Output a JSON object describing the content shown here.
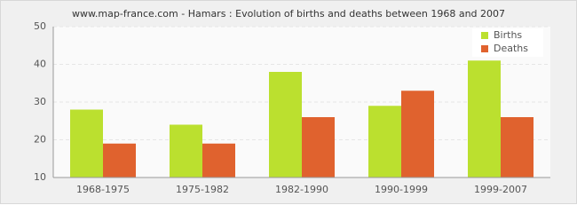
{
  "chart_data": {
    "type": "bar",
    "title": "www.map-france.com - Hamars : Evolution of births and deaths between 1968 and 2007",
    "categories": [
      "1968-1975",
      "1975-1982",
      "1982-1990",
      "1990-1999",
      "1999-2007"
    ],
    "series": [
      {
        "name": "Births",
        "color": "#bbe02f",
        "values": [
          28,
          24,
          38,
          29,
          41
        ]
      },
      {
        "name": "Deaths",
        "color": "#e0622e",
        "values": [
          19,
          19,
          26,
          33,
          26
        ]
      }
    ],
    "ylim": [
      10,
      50
    ],
    "yticks": [
      10,
      20,
      30,
      40,
      50
    ],
    "grid": true,
    "legend": "top-right"
  }
}
